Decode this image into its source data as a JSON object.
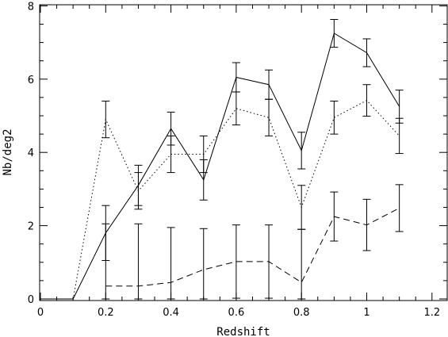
{
  "chart_data": {
    "type": "line",
    "xlabel": "Redshift",
    "ylabel": "Nb/deg2",
    "xlim": [
      0,
      1.25
    ],
    "ylim": [
      0,
      8
    ],
    "xticks": [
      0,
      0.2,
      0.4,
      0.6,
      0.8,
      1,
      1.2
    ],
    "xtick_labels": [
      "0",
      "0.2",
      "0.4",
      "0.6",
      "0.8",
      "1",
      "1.2"
    ],
    "yticks": [
      0,
      2,
      4,
      6,
      8
    ],
    "ytick_labels": [
      "0",
      "2",
      "4",
      "6",
      "8"
    ],
    "grid": false,
    "series": [
      {
        "style": "solid",
        "x": [
          0,
          0.1,
          0.2,
          0.3,
          0.4,
          0.5,
          0.6,
          0.7,
          0.8,
          0.9,
          1.0,
          1.1
        ],
        "y": [
          0,
          0,
          1.8,
          3.1,
          4.65,
          3.25,
          6.05,
          5.85,
          4.05,
          7.25,
          6.72,
          5.25
        ],
        "err": [
          null,
          null,
          0.75,
          0.55,
          0.45,
          0.55,
          0.4,
          0.4,
          0.5,
          0.38,
          0.38,
          0.45
        ]
      },
      {
        "style": "dotted",
        "x": [
          0,
          0.1,
          0.2,
          0.3,
          0.4,
          0.5,
          0.6,
          0.7,
          0.8,
          0.9,
          1.0,
          1.1
        ],
        "y": [
          0,
          0,
          4.9,
          2.95,
          3.95,
          3.95,
          5.2,
          4.95,
          2.5,
          4.95,
          5.42,
          4.45
        ],
        "err": [
          null,
          null,
          0.5,
          0.5,
          0.5,
          0.5,
          0.45,
          0.5,
          0.6,
          0.45,
          0.43,
          0.48
        ]
      },
      {
        "style": "dashed",
        "x": [
          0.2,
          0.3,
          0.4,
          0.5,
          0.6,
          0.7,
          0.8,
          0.9,
          1.0,
          1.1
        ],
        "y": [
          0.35,
          0.35,
          0.45,
          0.8,
          1.02,
          1.02,
          0.45,
          2.25,
          2.02,
          2.48
        ],
        "err": [
          1.7,
          1.7,
          1.5,
          1.12,
          1.0,
          1.0,
          1.45,
          0.67,
          0.7,
          0.64
        ]
      }
    ]
  }
}
